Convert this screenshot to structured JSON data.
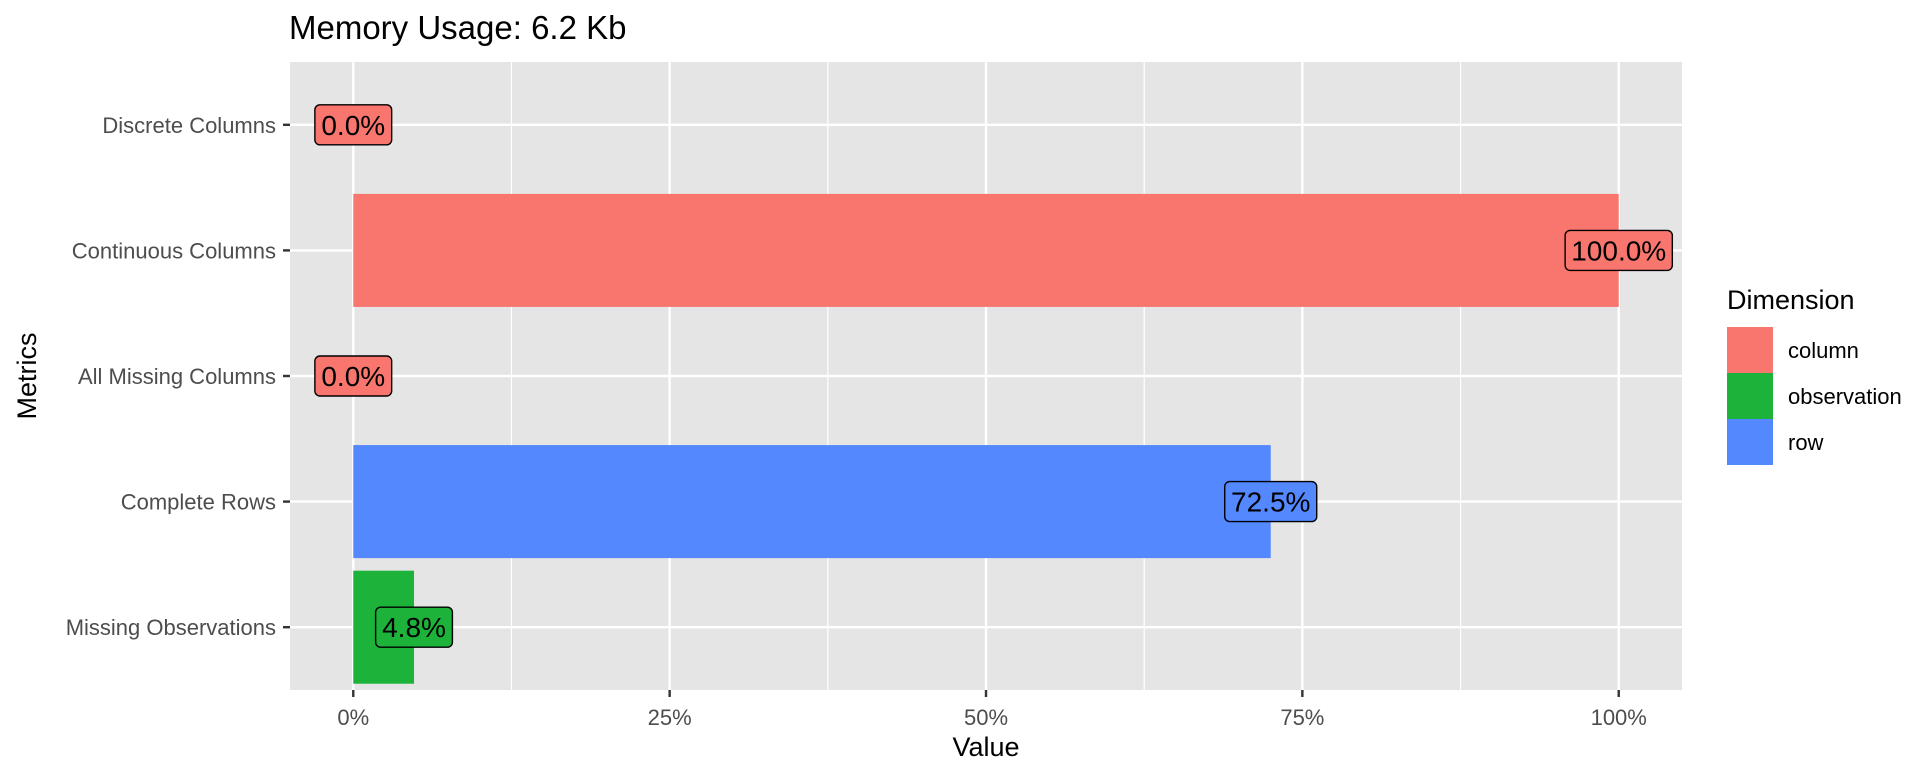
{
  "chart_data": {
    "type": "bar",
    "orientation": "horizontal",
    "title": "Memory Usage: 6.2 Kb",
    "xlabel": "Value",
    "ylabel": "Metrics",
    "xlim": [
      -0.05,
      1.05
    ],
    "x_ticks": [
      0,
      0.25,
      0.5,
      0.75,
      1.0
    ],
    "x_tick_labels": [
      "0%",
      "25%",
      "50%",
      "75%",
      "100%"
    ],
    "grid": true,
    "legend_title": "Dimension",
    "legend_position": "right",
    "legend": [
      {
        "name": "column",
        "color": "#F8766D"
      },
      {
        "name": "observation",
        "color": "#1DB33B"
      },
      {
        "name": "row",
        "color": "#5388FF"
      }
    ],
    "categories": [
      "Discrete Columns",
      "Continuous Columns",
      "All Missing Columns",
      "Complete Rows",
      "Missing Observations"
    ],
    "bars": [
      {
        "category": "Discrete Columns",
        "value": 0.0,
        "label": "0.0%",
        "dimension": "column"
      },
      {
        "category": "Continuous Columns",
        "value": 1.0,
        "label": "100.0%",
        "dimension": "column"
      },
      {
        "category": "All Missing Columns",
        "value": 0.0,
        "label": "0.0%",
        "dimension": "column"
      },
      {
        "category": "Complete Rows",
        "value": 0.725,
        "label": "72.5%",
        "dimension": "row"
      },
      {
        "category": "Missing Observations",
        "value": 0.048,
        "label": "4.8%",
        "dimension": "observation"
      }
    ],
    "colors": {
      "panel_background": "#E5E5E5",
      "gridline": "#FFFFFF",
      "column": "#F8766D",
      "observation": "#1DB33B",
      "row": "#5388FF"
    }
  }
}
